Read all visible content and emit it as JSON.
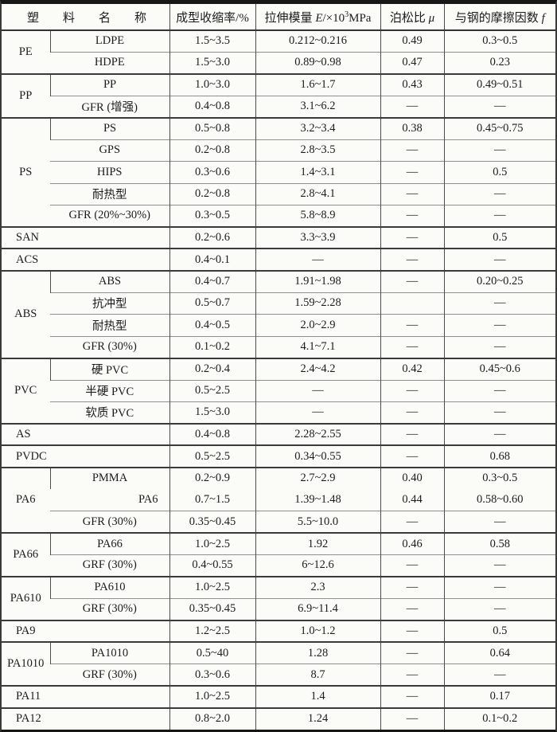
{
  "table": {
    "name_header": "塑料名称",
    "shrinkage_header": "成型收缩率/%",
    "modulus_header": {
      "prefix": "拉伸模量 ",
      "symbol": "E",
      "mid": "/×10",
      "sup": "3",
      "unit": "MPa"
    },
    "poisson_header": {
      "prefix": "泊松比 ",
      "symbol": "μ"
    },
    "friction_header": {
      "prefix": "与钢的摩擦因数 ",
      "symbol": "f"
    },
    "rows": [
      {
        "group": "PE",
        "group_rows": 2,
        "name": "LDPE",
        "values": [
          "1.5~3.5",
          "0.212~0.216",
          "0.49",
          "0.3~0.5"
        ]
      },
      {
        "name": "HDPE",
        "values": [
          "1.5~3.0",
          "0.89~0.98",
          "0.47",
          "0.23"
        ]
      },
      {
        "group": "PP",
        "group_rows": 2,
        "name": "PP",
        "values": [
          "1.0~3.0",
          "1.6~1.7",
          "0.43",
          "0.49~0.51"
        ]
      },
      {
        "name": "GFR (增强)",
        "values": [
          "0.4~0.8",
          "3.1~6.2",
          "—",
          "—"
        ]
      },
      {
        "group": "PS",
        "group_rows": 5,
        "name": "PS",
        "values": [
          "0.5~0.8",
          "3.2~3.4",
          "0.38",
          "0.45~0.75"
        ]
      },
      {
        "name": "GPS",
        "values": [
          "0.2~0.8",
          "2.8~3.5",
          "—",
          "—"
        ]
      },
      {
        "name": "HIPS",
        "values": [
          "0.3~0.6",
          "1.4~3.1",
          "—",
          "0.5"
        ]
      },
      {
        "name": "耐热型",
        "values": [
          "0.2~0.8",
          "2.8~4.1",
          "—",
          "—"
        ]
      },
      {
        "name": "GFR (20%~30%)",
        "values": [
          "0.3~0.5",
          "5.8~8.9",
          "—",
          "—"
        ]
      },
      {
        "full": "SAN",
        "values": [
          "0.2~0.6",
          "3.3~3.9",
          "—",
          "0.5"
        ]
      },
      {
        "full": "ACS",
        "values": [
          "0.4~0.1",
          "—",
          "—",
          "—"
        ]
      },
      {
        "group": "ABS",
        "group_rows": 4,
        "name": "ABS",
        "values": [
          "0.4~0.7",
          "1.91~1.98",
          "—",
          "0.20~0.25"
        ]
      },
      {
        "name": "抗冲型",
        "values": [
          "0.5~0.7",
          "1.59~2.28",
          "",
          "—"
        ]
      },
      {
        "name": "耐热型",
        "values": [
          "0.4~0.5",
          "2.0~2.9",
          "—",
          "—"
        ]
      },
      {
        "name": "GFR (30%)",
        "values": [
          "0.1~0.2",
          "4.1~7.1",
          "—",
          "—"
        ]
      },
      {
        "group": "PVC",
        "group_rows": 3,
        "name": "硬 PVC",
        "values": [
          "0.2~0.4",
          "2.4~4.2",
          "0.42",
          "0.45~0.6"
        ]
      },
      {
        "name": "半硬 PVC",
        "values": [
          "0.5~2.5",
          "—",
          "—",
          "—"
        ]
      },
      {
        "name": "软质 PVC",
        "values": [
          "1.5~3.0",
          "—",
          "—",
          "—"
        ]
      },
      {
        "full": "AS",
        "values": [
          "0.4~0.8",
          "2.28~2.55",
          "—",
          "—"
        ]
      },
      {
        "full": "PVDC",
        "values": [
          "0.5~2.5",
          "0.34~0.55",
          "—",
          "0.68"
        ]
      },
      {
        "group": "PA6",
        "group_rows": 3,
        "name": "PMMA",
        "values": [
          "0.2~0.9",
          "2.7~2.9",
          "0.40",
          "0.3~0.5"
        ]
      },
      {
        "name": "PA6",
        "name_align": "right",
        "no_top": true,
        "values": [
          "0.7~1.5",
          "1.39~1.48",
          "0.44",
          "0.58~0.60"
        ]
      },
      {
        "name": "GFR (30%)",
        "values": [
          "0.35~0.45",
          "5.5~10.0",
          "—",
          "—"
        ]
      },
      {
        "group": "PA66",
        "group_rows": 2,
        "name": "PA66",
        "values": [
          "1.0~2.5",
          "1.92",
          "0.46",
          "0.58"
        ]
      },
      {
        "name": "GRF (30%)",
        "values": [
          "0.4~0.55",
          "6~12.6",
          "—",
          "—"
        ]
      },
      {
        "group": "PA610",
        "group_rows": 2,
        "name": "PA610",
        "values": [
          "1.0~2.5",
          "2.3",
          "—",
          "—"
        ]
      },
      {
        "name": "GRF (30%)",
        "values": [
          "0.35~0.45",
          "6.9~11.4",
          "—",
          "—"
        ]
      },
      {
        "full": "PA9",
        "values": [
          "1.2~2.5",
          "1.0~1.2",
          "—",
          "0.5"
        ]
      },
      {
        "group": "PA1010",
        "group_rows": 2,
        "name": "PA1010",
        "values": [
          "0.5~40",
          "1.28",
          "—",
          "0.64"
        ]
      },
      {
        "name": "GRF (30%)",
        "values": [
          "0.3~0.6",
          "8.7",
          "—",
          "—"
        ]
      },
      {
        "full": "PA11",
        "values": [
          "1.0~2.5",
          "1.4",
          "—",
          "0.17"
        ]
      },
      {
        "full": "PA12",
        "values": [
          "0.8~2.0",
          "1.24",
          "—",
          "0.1~0.2"
        ]
      }
    ]
  }
}
